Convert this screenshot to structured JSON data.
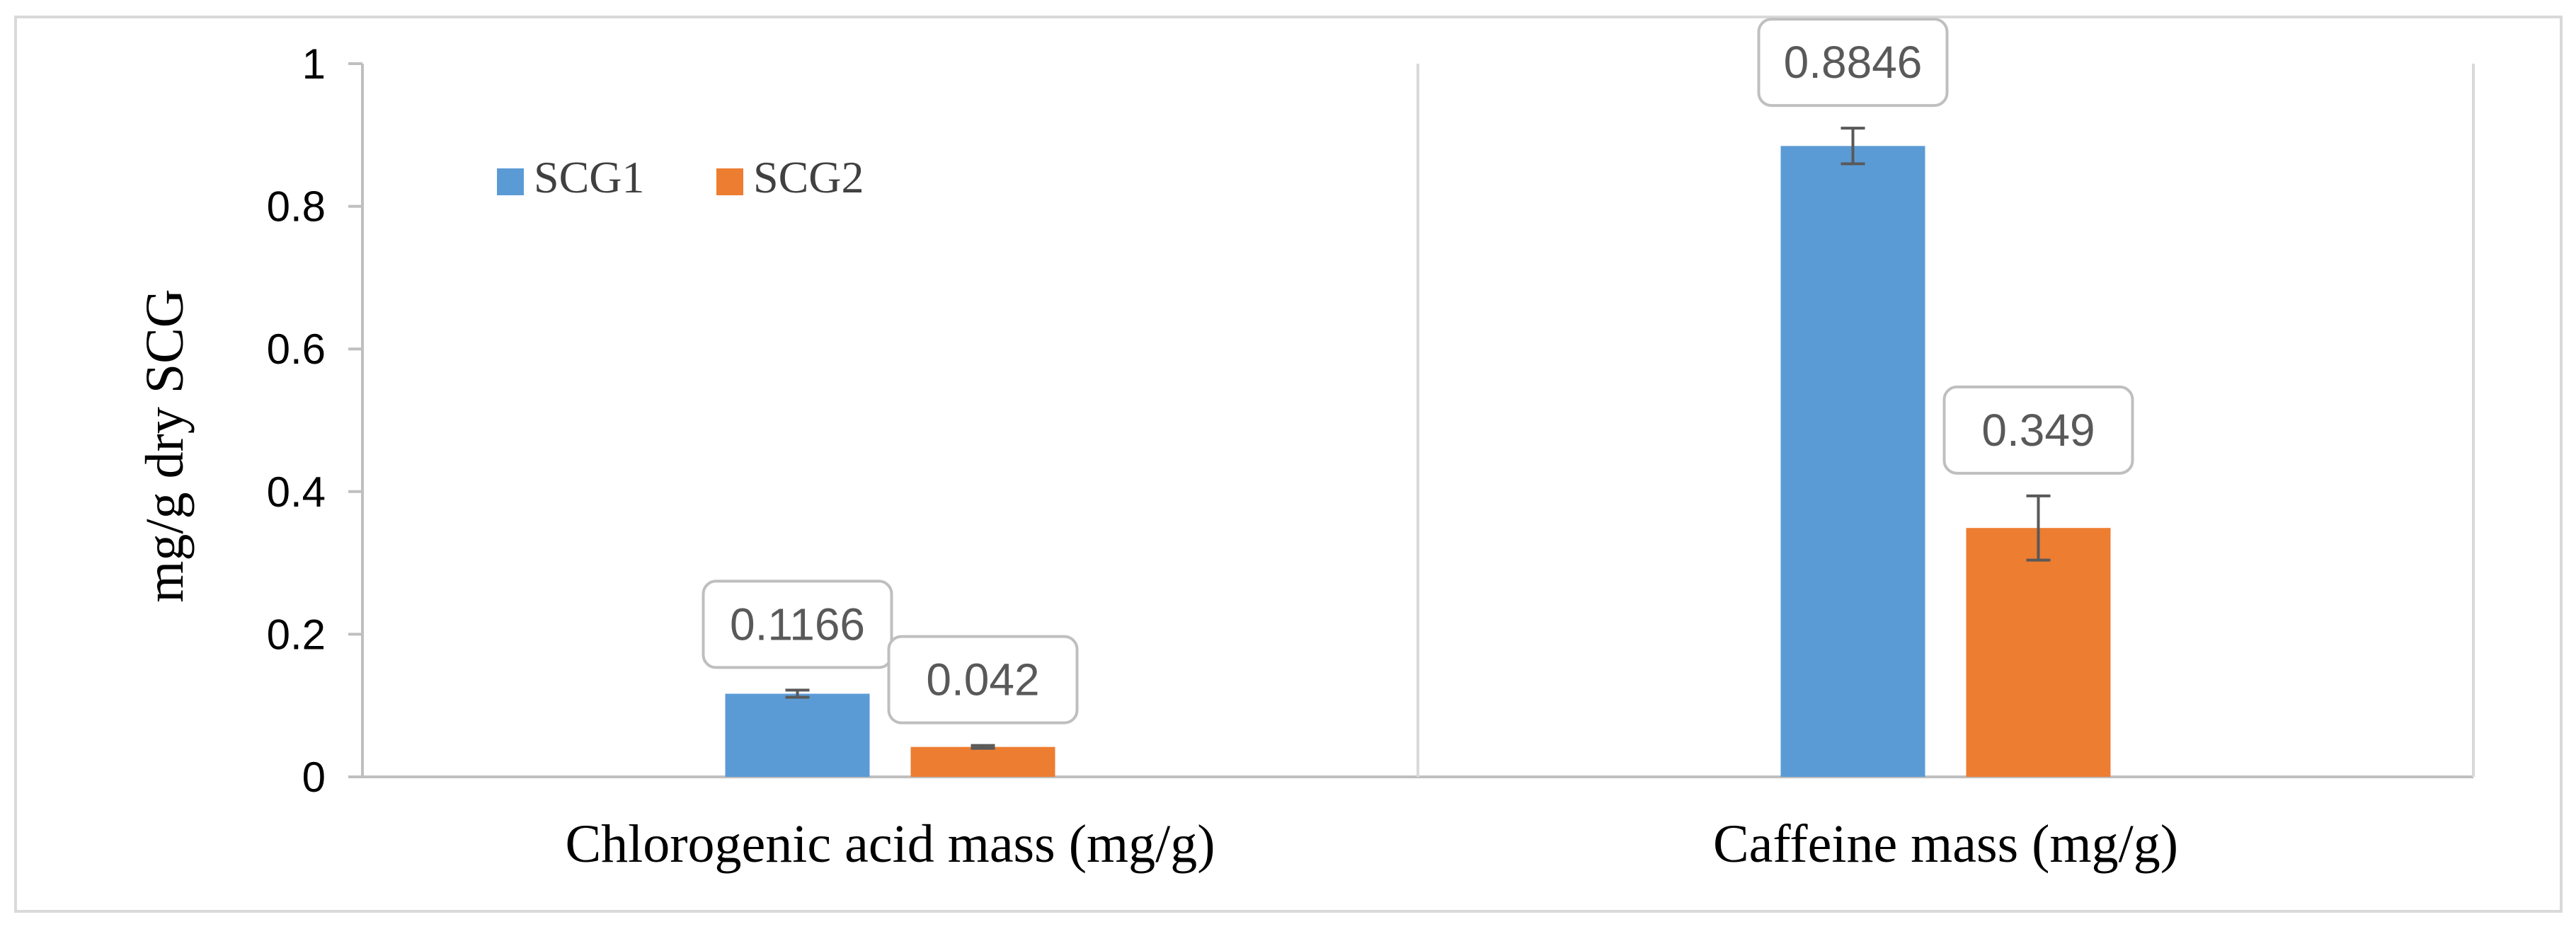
{
  "chart_data": {
    "type": "bar",
    "title": "",
    "xlabel": "",
    "ylabel": "mg/g dry SCG",
    "ylim": [
      0,
      1
    ],
    "yticks": [
      0,
      0.2,
      0.4,
      0.6,
      0.8,
      1
    ],
    "ytick_labels": [
      "0",
      "0.2",
      "0.4",
      "0.6",
      "0.8",
      "1"
    ],
    "categories": [
      "Chlorogenic acid mass (mg/g)",
      "Caffeine mass (mg/g)"
    ],
    "series": [
      {
        "name": "SCG1",
        "color": "#5b9bd5",
        "values": [
          0.1166,
          0.8846
        ],
        "errors": [
          0.005,
          0.025
        ],
        "labels": [
          "0.1166",
          "0.8846"
        ]
      },
      {
        "name": "SCG2",
        "color": "#ed7d31",
        "values": [
          0.042,
          0.349
        ],
        "errors": [
          0.002,
          0.045
        ],
        "labels": [
          "0.042",
          "0.349"
        ]
      }
    ],
    "legend_position": "top-left",
    "grid": false,
    "category_separators": true,
    "error_bars": true
  }
}
